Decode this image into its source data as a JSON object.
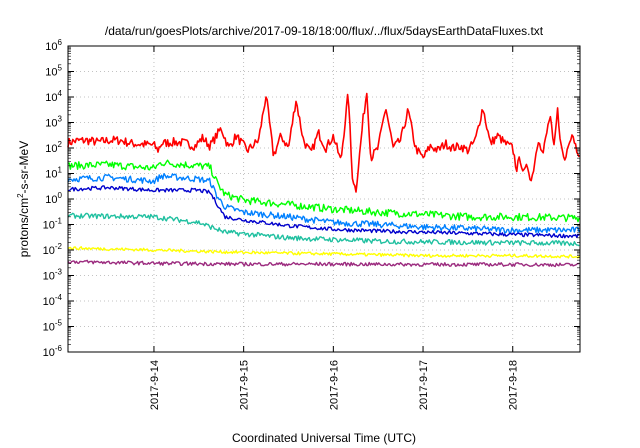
{
  "chart_data": {
    "type": "line",
    "title": "/data/run/goesPlots/archive/2017-09-18/18:00/flux/../flux/5daysEarthDataFluxes.txt",
    "xlabel": "Coordinated Universal Time (UTC)",
    "ylabel": {
      "base": "protons/cm",
      "sup": "2",
      "rest": "-s-sr-MeV"
    },
    "scale_y": "log",
    "grid": true,
    "x_range": [
      "2017-09-13 01:00",
      "2017-09-18 18:00"
    ],
    "ylim": [
      1e-06,
      1000000
    ],
    "x_ticks": [
      "2017-9-14",
      "2017-9-15",
      "2017-9-16",
      "2017-9-17",
      "2017-9-18"
    ],
    "y_ticks": [
      {
        "base": "10",
        "exp": "-6",
        "value": 1e-06
      },
      {
        "base": "10",
        "exp": "-5",
        "value": 1e-05
      },
      {
        "base": "10",
        "exp": "-4",
        "value": 0.0001
      },
      {
        "base": "10",
        "exp": "-3",
        "value": 0.001
      },
      {
        "base": "10",
        "exp": "-2",
        "value": 0.01
      },
      {
        "base": "10",
        "exp": "-1",
        "value": 0.1
      },
      {
        "base": "10",
        "exp": "0",
        "value": 1
      },
      {
        "base": "10",
        "exp": "1",
        "value": 10
      },
      {
        "base": "10",
        "exp": "2",
        "value": 100
      },
      {
        "base": "10",
        "exp": "3",
        "value": 1000
      },
      {
        "base": "10",
        "exp": "4",
        "value": 10000
      },
      {
        "base": "10",
        "exp": "5",
        "value": 100000
      },
      {
        "base": "10",
        "exp": "6",
        "value": 1000000
      }
    ],
    "series": [
      {
        "color": "#ff0000",
        "noise": 0.35,
        "points": [
          [
            "2017-09-13 01:00",
            160
          ],
          [
            "2017-09-13 03:00",
            190
          ],
          [
            "2017-09-13 06:00",
            200
          ],
          [
            "2017-09-13 09:00",
            170
          ],
          [
            "2017-09-13 12:00",
            200
          ],
          [
            "2017-09-13 15:00",
            200
          ],
          [
            "2017-09-13 18:00",
            150
          ],
          [
            "2017-09-13 21:00",
            140
          ],
          [
            "2017-09-14 00:00",
            130
          ],
          [
            "2017-09-14 01:00",
            80
          ],
          [
            "2017-09-14 02:00",
            150
          ],
          [
            "2017-09-14 05:00",
            170
          ],
          [
            "2017-09-14 08:00",
            160
          ],
          [
            "2017-09-14 11:00",
            120
          ],
          [
            "2017-09-14 13:00",
            250
          ],
          [
            "2017-09-14 15:00",
            120
          ],
          [
            "2017-09-14 18:00",
            600
          ],
          [
            "2017-09-14 20:00",
            100
          ],
          [
            "2017-09-14 22:00",
            300
          ],
          [
            "2017-09-15 01:00",
            80
          ],
          [
            "2017-09-15 04:00",
            200
          ],
          [
            "2017-09-15 06:00",
            12000
          ],
          [
            "2017-09-15 08:00",
            50
          ],
          [
            "2017-09-15 10:00",
            300
          ],
          [
            "2017-09-15 12:00",
            100
          ],
          [
            "2017-09-15 14:00",
            8000
          ],
          [
            "2017-09-15 16:00",
            200
          ],
          [
            "2017-09-15 18:00",
            60
          ],
          [
            "2017-09-15 20:00",
            400
          ],
          [
            "2017-09-15 22:00",
            100
          ],
          [
            "2017-09-16 00:00",
            300
          ],
          [
            "2017-09-16 02:00",
            30
          ],
          [
            "2017-09-16 04:00",
            15000
          ],
          [
            "2017-09-16 05:00",
            10
          ],
          [
            "2017-09-16 06:00",
            2
          ],
          [
            "2017-09-16 07:00",
            50
          ],
          [
            "2017-09-16 08:00",
            1500
          ],
          [
            "2017-09-16 09:00",
            18000
          ],
          [
            "2017-09-16 10:00",
            40
          ],
          [
            "2017-09-16 12:00",
            100
          ],
          [
            "2017-09-16 14:00",
            4000
          ],
          [
            "2017-09-16 16:00",
            100
          ],
          [
            "2017-09-16 18:00",
            200
          ],
          [
            "2017-09-16 20:00",
            3000
          ],
          [
            "2017-09-16 22:00",
            100
          ],
          [
            "2017-09-17 00:00",
            40
          ],
          [
            "2017-09-17 02:00",
            120
          ],
          [
            "2017-09-17 04:00",
            80
          ],
          [
            "2017-09-17 06:00",
            150
          ],
          [
            "2017-09-17 08:00",
            100
          ],
          [
            "2017-09-17 10:00",
            120
          ],
          [
            "2017-09-17 12:00",
            80
          ],
          [
            "2017-09-17 14:00",
            200
          ],
          [
            "2017-09-17 16:00",
            4000
          ],
          [
            "2017-09-17 18:00",
            150
          ],
          [
            "2017-09-17 20:00",
            300
          ],
          [
            "2017-09-17 22:00",
            150
          ],
          [
            "2017-09-18 00:00",
            100
          ],
          [
            "2017-09-18 01:00",
            15
          ],
          [
            "2017-09-18 02:00",
            40
          ],
          [
            "2017-09-18 03:00",
            10
          ],
          [
            "2017-09-18 04:00",
            20
          ],
          [
            "2017-09-18 05:00",
            5
          ],
          [
            "2017-09-18 07:00",
            300
          ],
          [
            "2017-09-18 08:00",
            50
          ],
          [
            "2017-09-18 10:00",
            2000
          ],
          [
            "2017-09-18 11:00",
            80
          ],
          [
            "2017-09-18 12:00",
            3000
          ],
          [
            "2017-09-18 13:00",
            100
          ],
          [
            "2017-09-18 14:00",
            30
          ],
          [
            "2017-09-18 15:00",
            200
          ],
          [
            "2017-09-18 16:00",
            400
          ],
          [
            "2017-09-18 17:00",
            100
          ],
          [
            "2017-09-18 18:00",
            60
          ]
        ]
      },
      {
        "color": "#00ff00",
        "noise": 0.3,
        "points": [
          [
            "2017-09-13 01:00",
            20
          ],
          [
            "2017-09-13 12:00",
            22
          ],
          [
            "2017-09-14 00:00",
            16
          ],
          [
            "2017-09-14 02:00",
            27
          ],
          [
            "2017-09-14 12:00",
            20
          ],
          [
            "2017-09-14 15:00",
            18
          ],
          [
            "2017-09-14 17:00",
            4
          ],
          [
            "2017-09-14 19:00",
            1.5
          ],
          [
            "2017-09-15 00:00",
            0.9
          ],
          [
            "2017-09-15 12:00",
            0.6
          ],
          [
            "2017-09-16 00:00",
            0.4
          ],
          [
            "2017-09-16 12:00",
            0.3
          ],
          [
            "2017-09-17 00:00",
            0.25
          ],
          [
            "2017-09-17 12:00",
            0.2
          ],
          [
            "2017-09-18 00:00",
            0.2
          ],
          [
            "2017-09-18 18:00",
            0.18
          ]
        ]
      },
      {
        "color": "#0080ff",
        "noise": 0.25,
        "points": [
          [
            "2017-09-13 01:00",
            6
          ],
          [
            "2017-09-13 12:00",
            7
          ],
          [
            "2017-09-14 00:00",
            5
          ],
          [
            "2017-09-14 02:00",
            8
          ],
          [
            "2017-09-14 12:00",
            6
          ],
          [
            "2017-09-14 15:00",
            5
          ],
          [
            "2017-09-14 17:00",
            1.2
          ],
          [
            "2017-09-14 19:00",
            0.5
          ],
          [
            "2017-09-15 00:00",
            0.3
          ],
          [
            "2017-09-15 12:00",
            0.2
          ],
          [
            "2017-09-16 00:00",
            0.12
          ],
          [
            "2017-09-16 12:00",
            0.1
          ],
          [
            "2017-09-17 00:00",
            0.08
          ],
          [
            "2017-09-17 12:00",
            0.07
          ],
          [
            "2017-09-18 00:00",
            0.06
          ],
          [
            "2017-09-18 18:00",
            0.06
          ]
        ]
      },
      {
        "color": "#0000cc",
        "noise": 0.15,
        "points": [
          [
            "2017-09-13 01:00",
            2.4
          ],
          [
            "2017-09-13 12:00",
            2.8
          ],
          [
            "2017-09-14 00:00",
            2.2
          ],
          [
            "2017-09-14 12:00",
            2.2
          ],
          [
            "2017-09-14 15:00",
            1.8
          ],
          [
            "2017-09-14 17:00",
            0.6
          ],
          [
            "2017-09-14 19:00",
            0.2
          ],
          [
            "2017-09-15 00:00",
            0.15
          ],
          [
            "2017-09-15 12:00",
            0.09
          ],
          [
            "2017-09-16 00:00",
            0.065
          ],
          [
            "2017-09-16 12:00",
            0.055
          ],
          [
            "2017-09-17 00:00",
            0.05
          ],
          [
            "2017-09-17 12:00",
            0.045
          ],
          [
            "2017-09-18 00:00",
            0.04
          ],
          [
            "2017-09-18 18:00",
            0.035
          ]
        ]
      },
      {
        "color": "#20c0a0",
        "noise": 0.2,
        "points": [
          [
            "2017-09-13 01:00",
            0.22
          ],
          [
            "2017-09-14 00:00",
            0.2
          ],
          [
            "2017-09-14 12:00",
            0.12
          ],
          [
            "2017-09-14 19:00",
            0.05
          ],
          [
            "2017-09-15 12:00",
            0.03
          ],
          [
            "2017-09-16 12:00",
            0.022
          ],
          [
            "2017-09-17 12:00",
            0.02
          ],
          [
            "2017-09-18 18:00",
            0.018
          ]
        ]
      },
      {
        "color": "#ffff00",
        "noise": 0.12,
        "points": [
          [
            "2017-09-13 01:00",
            0.012
          ],
          [
            "2017-09-14 00:00",
            0.01
          ],
          [
            "2017-09-15 00:00",
            0.008
          ],
          [
            "2017-09-16 00:00",
            0.007
          ],
          [
            "2017-09-17 00:00",
            0.006
          ],
          [
            "2017-09-18 00:00",
            0.006
          ],
          [
            "2017-09-18 18:00",
            0.0055
          ]
        ]
      },
      {
        "color": "#9b2a7e",
        "noise": 0.14,
        "points": [
          [
            "2017-09-13 01:00",
            0.0035
          ],
          [
            "2017-09-14 00:00",
            0.003
          ],
          [
            "2017-09-15 00:00",
            0.0028
          ],
          [
            "2017-09-16 00:00",
            0.0028
          ],
          [
            "2017-09-17 00:00",
            0.0027
          ],
          [
            "2017-09-18 00:00",
            0.0027
          ],
          [
            "2017-09-18 18:00",
            0.0026
          ]
        ]
      }
    ]
  }
}
